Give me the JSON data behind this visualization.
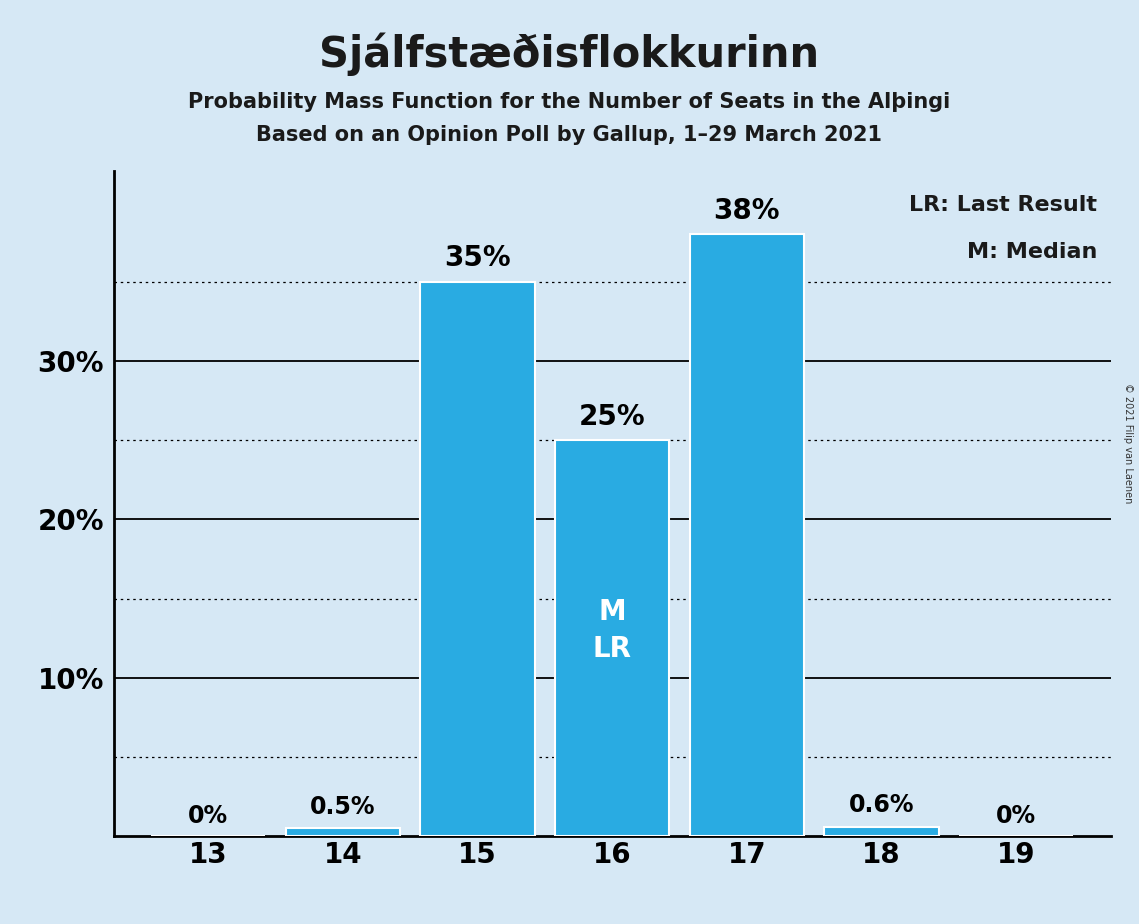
{
  "title": "Sjálfstæðisflokkurinn",
  "subtitle1": "Probability Mass Function for the Number of Seats in the Alþingi",
  "subtitle2": "Based on an Opinion Poll by Gallup, 1–29 March 2021",
  "copyright": "© 2021 Filip van Laenen",
  "seats": [
    13,
    14,
    15,
    16,
    17,
    18,
    19
  ],
  "probabilities": [
    0.0,
    0.5,
    35.0,
    25.0,
    38.0,
    0.6,
    0.0
  ],
  "bar_labels": [
    "0%",
    "0.5%",
    "35%",
    "25%",
    "38%",
    "0.6%",
    "0%"
  ],
  "bar_color": "#29ABE2",
  "background_color": "#D6E8F5",
  "median_seat": 16,
  "last_result_seat": 16,
  "legend_lr": "LR: Last Result",
  "legend_m": "M: Median",
  "ylim": [
    0,
    42
  ],
  "major_yticks": [
    10,
    20,
    30
  ],
  "major_ytick_labels": [
    "10%",
    "20%",
    "30%"
  ],
  "dotted_yticks": [
    5,
    15,
    25,
    35
  ],
  "title_fontsize": 30,
  "subtitle_fontsize": 15,
  "legend_fontsize": 16,
  "tick_fontsize": 20,
  "bar_label_fontsize": 20,
  "inside_label_fontsize": 20
}
